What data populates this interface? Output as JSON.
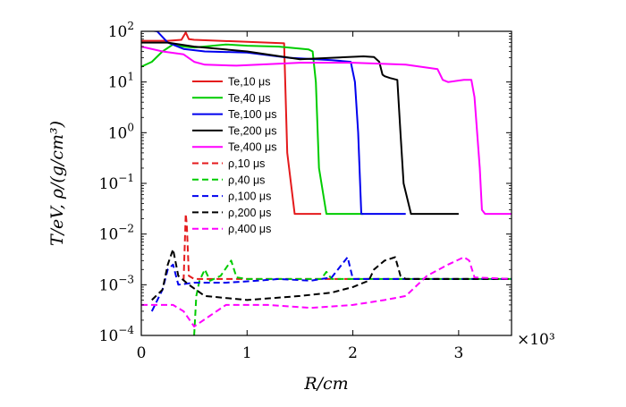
{
  "chart_data": {
    "type": "line",
    "title": "",
    "xlabel": "R/cm",
    "ylabel": "T/eV, ρ/(g/cm³)",
    "x_multiplier_label": "×10³",
    "xlim": [
      0,
      3.5
    ],
    "ylim": [
      0.0001,
      100
    ],
    "yscale": "log",
    "grid": false,
    "legend_position": "center",
    "x_ticks": [
      {
        "value": 0,
        "label": "0"
      },
      {
        "value": 1,
        "label": "1"
      },
      {
        "value": 2,
        "label": "2"
      },
      {
        "value": 3,
        "label": "3"
      }
    ],
    "y_ticks": [
      {
        "value": 100,
        "base": "10",
        "exp": "2"
      },
      {
        "value": 10,
        "base": "10",
        "exp": "1"
      },
      {
        "value": 1,
        "base": "10",
        "exp": "0"
      },
      {
        "value": 0.1,
        "base": "10",
        "exp": "−1"
      },
      {
        "value": 0.01,
        "base": "10",
        "exp": "−2"
      },
      {
        "value": 0.001,
        "base": "10",
        "exp": "−3"
      },
      {
        "value": 0.0001,
        "base": "10",
        "exp": "−4"
      }
    ],
    "series": [
      {
        "name": "Te,10 μs",
        "color": "#e41a1c",
        "dash": "solid",
        "x": [
          0,
          0.25,
          0.38,
          0.42,
          0.45,
          0.5,
          1.0,
          1.35,
          1.38,
          1.45,
          1.7
        ],
        "y": [
          65,
          65,
          68,
          95,
          70,
          68,
          62,
          58,
          0.4,
          0.025,
          0.025
        ]
      },
      {
        "name": "Te,40 μs",
        "color": "#00cc00",
        "dash": "solid",
        "x": [
          0,
          0.1,
          0.2,
          0.3,
          0.4,
          0.5,
          0.8,
          1.0,
          1.3,
          1.58,
          1.62,
          1.65,
          1.68,
          1.75,
          2.1
        ],
        "y": [
          20,
          25,
          40,
          55,
          50,
          48,
          55,
          52,
          50,
          44,
          40,
          10,
          0.2,
          0.025,
          0.025
        ]
      },
      {
        "name": "Te,100 μs",
        "color": "#0000ee",
        "dash": "solid",
        "x": [
          0,
          0.15,
          0.25,
          0.4,
          0.6,
          1.0,
          1.4,
          1.8,
          1.98,
          2.02,
          2.05,
          2.08,
          2.5
        ],
        "y": [
          110,
          100,
          60,
          45,
          40,
          38,
          30,
          27,
          25,
          10,
          1,
          0.025,
          0.025
        ]
      },
      {
        "name": "Te,200 μs",
        "color": "#000000",
        "dash": "solid",
        "x": [
          0,
          0.25,
          0.5,
          1.0,
          1.5,
          1.8,
          2.1,
          2.2,
          2.25,
          2.28,
          2.3,
          2.35,
          2.42,
          2.45,
          2.48,
          2.55,
          3.0
        ],
        "y": [
          60,
          60,
          50,
          40,
          28,
          30,
          32,
          31,
          25,
          14,
          13,
          12,
          11,
          1,
          0.1,
          0.025,
          0.025
        ]
      },
      {
        "name": "Te,400 μs",
        "color": "#ff00ff",
        "dash": "solid",
        "x": [
          0,
          0.2,
          0.4,
          0.5,
          0.6,
          0.9,
          1.5,
          2.0,
          2.5,
          2.8,
          2.85,
          2.9,
          3.05,
          3.12,
          3.15,
          3.2,
          3.22,
          3.25,
          3.5
        ],
        "y": [
          50,
          40,
          35,
          25,
          22,
          21,
          24,
          24,
          22,
          18,
          11,
          10,
          11,
          11,
          5,
          0.2,
          0.03,
          0.025,
          0.025
        ]
      },
      {
        "name": "ρ,10 μs",
        "color": "#e41a1c",
        "dash": "dashed",
        "x": [
          0.4,
          0.42,
          0.43,
          0.45,
          0.5,
          0.6,
          1.0,
          2.0,
          3.0,
          3.5
        ],
        "y": [
          0.0012,
          0.025,
          0.015,
          0.0015,
          0.0013,
          0.0013,
          0.0013,
          0.0013,
          0.0013,
          0.0013
        ]
      },
      {
        "name": "ρ,40 μs",
        "color": "#00cc00",
        "dash": "dashed",
        "x": [
          0.5,
          0.52,
          0.55,
          0.6,
          0.65,
          0.75,
          0.85,
          0.9,
          1.0,
          1.2,
          1.5,
          1.7,
          1.75,
          1.8,
          2.0,
          3.5
        ],
        "y": [
          0.0001,
          0.0006,
          0.0012,
          0.002,
          0.0012,
          0.0015,
          0.003,
          0.0014,
          0.0013,
          0.0013,
          0.0013,
          0.0013,
          0.0018,
          0.0013,
          0.0013,
          0.0013
        ]
      },
      {
        "name": "ρ,100 μs",
        "color": "#0000ee",
        "dash": "dashed",
        "x": [
          0.1,
          0.2,
          0.25,
          0.3,
          0.35,
          0.5,
          0.8,
          1.1,
          1.3,
          1.6,
          1.8,
          1.95,
          2.0,
          2.1,
          3.5
        ],
        "y": [
          0.0003,
          0.0008,
          0.002,
          0.0025,
          0.001,
          0.0011,
          0.0011,
          0.0012,
          0.0013,
          0.0012,
          0.0014,
          0.0035,
          0.0013,
          0.0013,
          0.0013
        ]
      },
      {
        "name": "ρ,200 μs",
        "color": "#000000",
        "dash": "dashed",
        "x": [
          0.1,
          0.2,
          0.25,
          0.3,
          0.35,
          0.45,
          0.6,
          1.0,
          1.5,
          1.8,
          2.0,
          2.15,
          2.2,
          2.3,
          2.4,
          2.45,
          2.5,
          3.5
        ],
        "y": [
          0.0005,
          0.0008,
          0.0025,
          0.005,
          0.0015,
          0.001,
          0.0006,
          0.0005,
          0.0006,
          0.0007,
          0.0009,
          0.0012,
          0.002,
          0.003,
          0.0035,
          0.0015,
          0.0013,
          0.0013
        ]
      },
      {
        "name": "ρ,400 μs",
        "color": "#ff00ff",
        "dash": "dashed",
        "x": [
          0,
          0.3,
          0.4,
          0.5,
          0.8,
          1.2,
          1.6,
          2.0,
          2.3,
          2.5,
          2.7,
          2.9,
          3.05,
          3.1,
          3.15,
          3.5
        ],
        "y": [
          0.0004,
          0.0004,
          0.0003,
          0.00015,
          0.0004,
          0.0004,
          0.00035,
          0.0004,
          0.0005,
          0.0006,
          0.0015,
          0.0025,
          0.0035,
          0.003,
          0.0014,
          0.0013
        ]
      }
    ]
  }
}
